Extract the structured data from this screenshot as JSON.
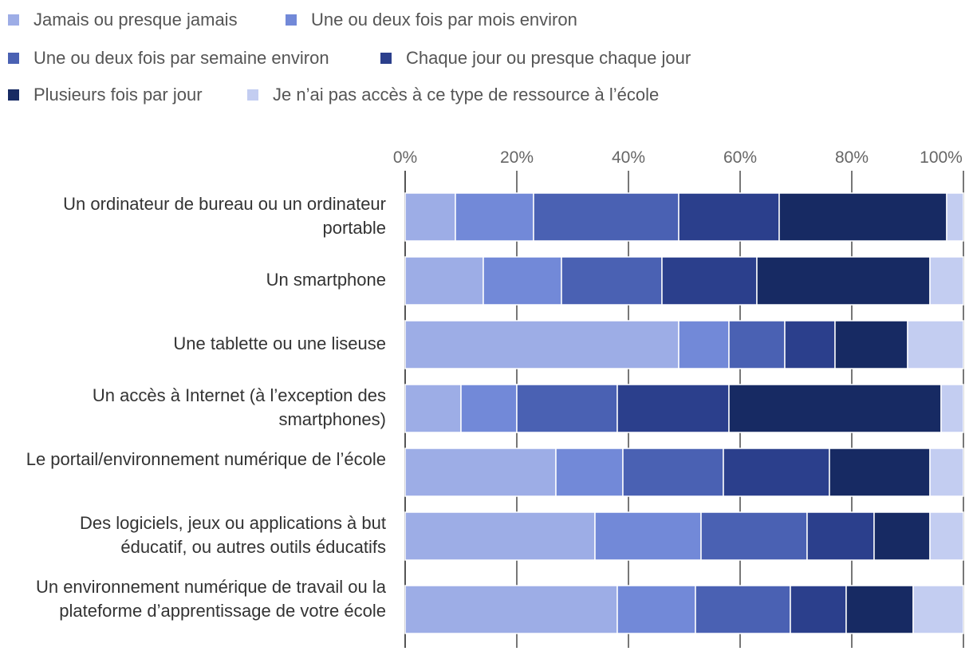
{
  "chart_data": {
    "type": "bar",
    "orientation": "horizontal",
    "stacked": true,
    "title": "",
    "xlabel": "",
    "ylabel": "",
    "xlim": [
      0,
      100
    ],
    "x_ticks": [
      "0%",
      "20%",
      "40%",
      "60%",
      "80%",
      "100%"
    ],
    "grid": true,
    "legend_position": "top",
    "categories": [
      "Un ordinateur de bureau ou un ordinateur portable",
      "Un smartphone",
      "Une tablette ou une liseuse",
      "Un accès à Internet (à l’exception des smartphones)",
      "Le portail/environnement numérique de l’école",
      "Des logiciels, jeux ou applications à but éducatif, ou autres outils éducatifs",
      "Un environnement numérique de travail ou la plateforme d’apprentissage de votre école"
    ],
    "series": [
      {
        "name": "Jamais ou presque jamais",
        "color": "#9dade6",
        "values": [
          9,
          14,
          49,
          10,
          27,
          34,
          38
        ]
      },
      {
        "name": "Une ou deux fois par mois environ",
        "color": "#7289d8",
        "values": [
          14,
          14,
          9,
          10,
          12,
          19,
          14
        ]
      },
      {
        "name": "Une ou deux fois par semaine environ",
        "color": "#4a61b3",
        "values": [
          26,
          18,
          10,
          18,
          18,
          19,
          17
        ]
      },
      {
        "name": "Chaque jour ou presque chaque jour",
        "color": "#2b3f8c",
        "values": [
          18,
          17,
          9,
          20,
          19,
          12,
          10
        ]
      },
      {
        "name": "Plusieurs fois par jour",
        "color": "#172a63",
        "values": [
          30,
          31,
          13,
          38,
          18,
          10,
          12
        ]
      },
      {
        "name": "Je n’ai pas accès à ce type de ressource à l’école",
        "color": "#c3cdf1",
        "values": [
          3,
          6,
          10,
          4,
          6,
          6,
          9
        ]
      }
    ]
  }
}
